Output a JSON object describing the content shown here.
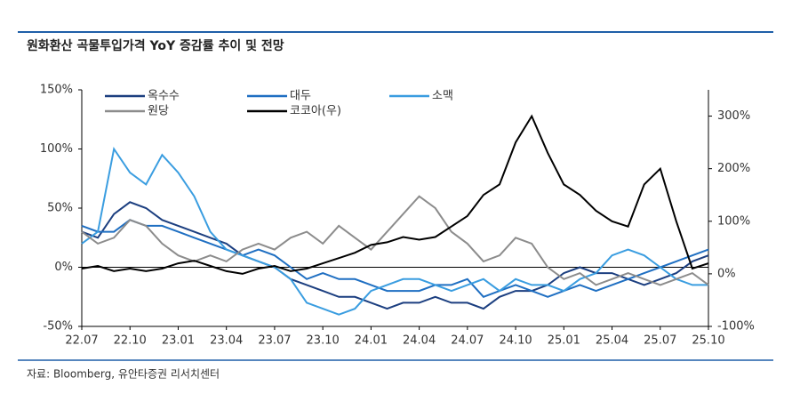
{
  "chart_data": {
    "type": "line",
    "title": "원화환산 곡물투입가격 YoY 증감률 추이 및 전망",
    "source": "자료: Bloomberg, 유안타증권 리서치센터",
    "categories": [
      "22.07",
      null,
      null,
      "22.10",
      null,
      null,
      "23.01",
      null,
      null,
      "23.04",
      null,
      null,
      "23.07",
      null,
      null,
      "23.10",
      null,
      null,
      "24.01",
      null,
      null,
      "24.04",
      null,
      null,
      "24.07",
      null,
      null,
      "24.10",
      null,
      null,
      "25.01",
      null,
      null,
      "25.04",
      null,
      null,
      "25.07",
      null,
      null,
      "25.10"
    ],
    "ylim": [
      -50,
      150
    ],
    "yticks": [
      {
        "value": -50,
        "label": "-50%"
      },
      {
        "value": 0,
        "label": "0%"
      },
      {
        "value": 50,
        "label": "50%"
      },
      {
        "value": 100,
        "label": "100%"
      },
      {
        "value": 150,
        "label": "150%"
      }
    ],
    "y2lim": [
      -100,
      350
    ],
    "y2ticks": [
      {
        "value": -100,
        "label": "-100%"
      },
      {
        "value": 0,
        "label": "0%"
      },
      {
        "value": 100,
        "label": "100%"
      },
      {
        "value": 200,
        "label": "200%"
      },
      {
        "value": 300,
        "label": "300%"
      }
    ],
    "series": [
      {
        "name": "옥수수",
        "color": "#1c3f80",
        "values": [
          30,
          25,
          45,
          55,
          50,
          40,
          35,
          30,
          25,
          20,
          10,
          5,
          0,
          -10,
          -15,
          -20,
          -25,
          -25,
          -30,
          -35,
          -30,
          -30,
          -25,
          -30,
          -30,
          -35,
          -25,
          -20,
          -20,
          -15,
          -5,
          0,
          -5,
          -5,
          -10,
          -15,
          -10,
          -5,
          5,
          10
        ]
      },
      {
        "name": "대두",
        "color": "#1f6fc2",
        "values": [
          35,
          30,
          30,
          40,
          35,
          35,
          30,
          25,
          20,
          15,
          10,
          15,
          10,
          0,
          -10,
          -5,
          -10,
          -10,
          -15,
          -20,
          -20,
          -20,
          -15,
          -15,
          -10,
          -25,
          -20,
          -15,
          -20,
          -25,
          -20,
          -15,
          -20,
          -15,
          -10,
          -5,
          0,
          5,
          10,
          15
        ]
      },
      {
        "name": "소맥",
        "color": "#3a9de0",
        "values": [
          20,
          30,
          100,
          80,
          70,
          95,
          80,
          60,
          30,
          15,
          10,
          5,
          0,
          -10,
          -30,
          -35,
          -40,
          -35,
          -20,
          -15,
          -10,
          -10,
          -15,
          -20,
          -15,
          -10,
          -20,
          -10,
          -15,
          -15,
          -20,
          -10,
          -5,
          10,
          15,
          10,
          0,
          -10,
          -15,
          -15
        ]
      },
      {
        "name": "원당",
        "color": "#8c8c8c",
        "values": [
          30,
          20,
          25,
          40,
          35,
          20,
          10,
          5,
          10,
          5,
          15,
          20,
          15,
          25,
          30,
          20,
          35,
          25,
          15,
          30,
          45,
          60,
          50,
          30,
          20,
          5,
          10,
          25,
          20,
          0,
          -10,
          -5,
          -15,
          -10,
          -5,
          -10,
          -15,
          -10,
          -5,
          -15
        ]
      },
      {
        "name": "코코아(우)",
        "color": "#000000",
        "axis": "y2",
        "values": [
          10,
          15,
          5,
          10,
          5,
          10,
          20,
          25,
          15,
          5,
          0,
          10,
          15,
          5,
          10,
          20,
          30,
          40,
          55,
          60,
          70,
          65,
          70,
          90,
          110,
          150,
          170,
          250,
          300,
          230,
          170,
          150,
          120,
          100,
          90,
          170,
          200,
          100,
          10,
          20
        ]
      }
    ]
  }
}
